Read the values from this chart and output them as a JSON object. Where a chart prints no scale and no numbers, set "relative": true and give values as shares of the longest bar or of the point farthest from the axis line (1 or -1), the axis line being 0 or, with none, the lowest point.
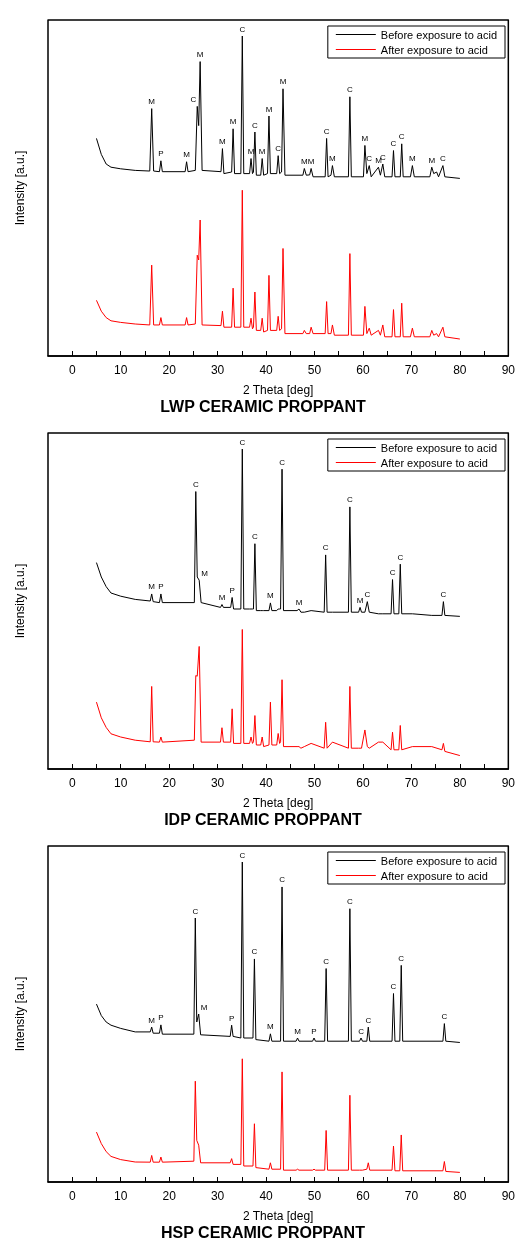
{
  "chart_data": [
    {
      "type": "line",
      "title": "LWP CERAMIC PROPPANT",
      "xlabel": "2 Theta [deg]",
      "ylabel": "Intensity [a.u.]",
      "relative": true,
      "legend": "top right",
      "marker": "none",
      "tick_labels": "x",
      "xlim": [
        -5,
        90
      ],
      "xticks": [
        0,
        {
          "value": 5,
          "label": null
        },
        10,
        {
          "value": 15,
          "label": null
        },
        20,
        {
          "value": 25,
          "label": null
        },
        30,
        {
          "value": 35,
          "label": null
        },
        40,
        {
          "value": 45,
          "label": null
        },
        50,
        {
          "value": 55,
          "label": null
        },
        60,
        {
          "value": 65,
          "label": null
        },
        70,
        {
          "value": 75,
          "label": null
        },
        80,
        {
          "value": 85,
          "label": null
        },
        90
      ],
      "x": [
        5,
        6,
        7,
        8,
        10,
        13,
        16,
        16.4,
        16.8,
        18,
        18.3,
        18.6,
        23.3,
        23.6,
        23.9,
        25.4,
        25.8,
        26.1,
        26.4,
        26.8,
        30.7,
        31,
        31.3,
        32.9,
        33.2,
        33.5,
        34.8,
        35.1,
        35.4,
        36.6,
        36.9,
        37.2,
        37.4,
        37.7,
        38,
        38.9,
        39.2,
        39.5,
        40.3,
        40.6,
        40.9,
        42.2,
        42.5,
        42.8,
        43.2,
        43.5,
        43.9,
        47.6,
        47.9,
        48.3,
        49,
        49.3,
        49.7,
        52.2,
        52.5,
        52.8,
        53.4,
        53.7,
        54.1,
        57,
        57.3,
        57.6,
        60.1,
        60.4,
        60.8,
        61.3,
        61.7,
        63.2,
        63.6,
        64.1,
        64.5,
        66,
        66.3,
        66.6,
        67.7,
        68,
        68.3,
        69.8,
        70.2,
        70.6,
        73.8,
        74.2,
        74.6,
        75.2,
        75.6,
        76.5,
        76.9,
        80
      ],
      "series": [
        {
          "name": "Before exposure to acid",
          "color": "#000000",
          "values": [
            0.68,
            0.63,
            0.6,
            0.59,
            0.585,
            0.58,
            0.578,
            0.773,
            0.578,
            0.576,
            0.61,
            0.576,
            0.576,
            0.607,
            0.576,
            0.58,
            0.78,
            0.72,
            0.92,
            0.58,
            0.576,
            0.648,
            0.57,
            0.575,
            0.71,
            0.57,
            0.57,
            1.0,
            0.57,
            0.57,
            0.617,
            0.57,
            0.575,
            0.7,
            0.565,
            0.565,
            0.617,
            0.565,
            0.57,
            0.75,
            0.57,
            0.57,
            0.626,
            0.57,
            0.575,
            0.835,
            0.565,
            0.565,
            0.586,
            0.565,
            0.566,
            0.586,
            0.56,
            0.56,
            0.68,
            0.56,
            0.565,
            0.595,
            0.56,
            0.56,
            0.81,
            0.56,
            0.56,
            0.658,
            0.57,
            0.595,
            0.56,
            0.59,
            0.565,
            0.6,
            0.56,
            0.56,
            0.642,
            0.56,
            0.56,
            0.663,
            0.56,
            0.56,
            0.595,
            0.56,
            0.56,
            0.59,
            0.57,
            0.575,
            0.56,
            0.595,
            0.56,
            0.555
          ]
        },
        {
          "name": "After exposure to acid",
          "color": "#ff0000",
          "values": [
            0.174,
            0.14,
            0.12,
            0.11,
            0.105,
            0.1,
            0.097,
            0.284,
            0.097,
            0.097,
            0.12,
            0.097,
            0.097,
            0.12,
            0.097,
            0.1,
            0.315,
            0.3,
            0.425,
            0.097,
            0.095,
            0.14,
            0.09,
            0.09,
            0.212,
            0.09,
            0.09,
            0.518,
            0.09,
            0.09,
            0.118,
            0.085,
            0.09,
            0.2,
            0.08,
            0.08,
            0.118,
            0.075,
            0.08,
            0.252,
            0.08,
            0.08,
            0.124,
            0.08,
            0.085,
            0.336,
            0.07,
            0.07,
            0.08,
            0.07,
            0.07,
            0.09,
            0.07,
            0.07,
            0.17,
            0.07,
            0.07,
            0.097,
            0.065,
            0.065,
            0.32,
            0.065,
            0.065,
            0.155,
            0.07,
            0.087,
            0.065,
            0.08,
            0.065,
            0.097,
            0.06,
            0.06,
            0.145,
            0.06,
            0.06,
            0.165,
            0.06,
            0.06,
            0.087,
            0.06,
            0.06,
            0.08,
            0.065,
            0.07,
            0.06,
            0.09,
            0.06,
            0.053
          ]
        }
      ],
      "annotations": [
        {
          "text": "M",
          "x": 16.4,
          "y": 0.773
        },
        {
          "text": "P",
          "x": 18.3,
          "y": 0.61
        },
        {
          "text": "M",
          "x": 23.6,
          "y": 0.607
        },
        {
          "text": "C",
          "x": 25.8,
          "y": 0.78
        },
        {
          "text": "M",
          "x": 26.4,
          "y": 0.92
        },
        {
          "text": "M",
          "x": 31,
          "y": 0.648
        },
        {
          "text": "M",
          "x": 33.2,
          "y": 0.71
        },
        {
          "text": "C",
          "x": 35.1,
          "y": 1.0
        },
        {
          "text": "M",
          "x": 36.9,
          "y": 0.617
        },
        {
          "text": "C",
          "x": 37.7,
          "y": 0.7
        },
        {
          "text": "M",
          "x": 39.2,
          "y": 0.617
        },
        {
          "text": "M",
          "x": 40.6,
          "y": 0.75
        },
        {
          "text": "C",
          "x": 42.5,
          "y": 0.626
        },
        {
          "text": "M",
          "x": 43.5,
          "y": 0.835
        },
        {
          "text": "M",
          "x": 47.9,
          "y": 0.586
        },
        {
          "text": "M",
          "x": 49.3,
          "y": 0.586
        },
        {
          "text": "C",
          "x": 52.5,
          "y": 0.68
        },
        {
          "text": "M",
          "x": 53.7,
          "y": 0.595
        },
        {
          "text": "C",
          "x": 57.3,
          "y": 0.81
        },
        {
          "text": "M",
          "x": 60.4,
          "y": 0.658
        },
        {
          "text": "C",
          "x": 61.3,
          "y": 0.595
        },
        {
          "text": "M",
          "x": 63.2,
          "y": 0.59
        },
        {
          "text": "C",
          "x": 64.1,
          "y": 0.6
        },
        {
          "text": "C",
          "x": 66.3,
          "y": 0.642
        },
        {
          "text": "C",
          "x": 68,
          "y": 0.663
        },
        {
          "text": "M",
          "x": 70.2,
          "y": 0.595
        },
        {
          "text": "M",
          "x": 74.2,
          "y": 0.59
        },
        {
          "text": "C",
          "x": 76.5,
          "y": 0.595
        }
      ]
    },
    {
      "type": "line",
      "title": "IDP CERAMIC PROPPANT",
      "xlabel": "2 Theta [deg]",
      "ylabel": "Intensity [a.u.]",
      "relative": true,
      "legend": "top right",
      "marker": "none",
      "tick_labels": "x",
      "xlim": [
        -5,
        90
      ],
      "xticks": [
        0,
        {
          "value": 5,
          "label": null
        },
        10,
        {
          "value": 15,
          "label": null
        },
        20,
        {
          "value": 25,
          "label": null
        },
        30,
        {
          "value": 35,
          "label": null
        },
        40,
        {
          "value": 45,
          "label": null
        },
        50,
        {
          "value": 55,
          "label": null
        },
        60,
        {
          "value": 65,
          "label": null
        },
        70,
        {
          "value": 75,
          "label": null
        },
        80,
        {
          "value": 85,
          "label": null
        },
        90
      ],
      "x": [
        5,
        6,
        7,
        8,
        10,
        13,
        16.1,
        16.4,
        16.7,
        18,
        18.3,
        18.6,
        25.2,
        25.5,
        25.8,
        26.2,
        26.6,
        30.6,
        30.9,
        31.2,
        32.7,
        33,
        33.3,
        34.8,
        35.1,
        35.4,
        36.6,
        36.9,
        37.2,
        37.4,
        37.7,
        38,
        38.9,
        39.2,
        39.5,
        40.6,
        40.9,
        41.2,
        42.2,
        42.5,
        42.8,
        43,
        43.3,
        43.6,
        46.4,
        46.8,
        47.2,
        47.9,
        49.3,
        52,
        52.3,
        52.6,
        53.7,
        57,
        57.3,
        57.6,
        59.1,
        59.4,
        59.7,
        60.4,
        60.9,
        61.3,
        63.2,
        64.1,
        65.8,
        66.1,
        66.4,
        67.4,
        67.7,
        68,
        70.2,
        74.2,
        76.3,
        76.6,
        76.9,
        80
      ],
      "series": [
        {
          "name": "Before exposure to acid",
          "color": "#000000",
          "values": [
            0.645,
            0.6,
            0.57,
            0.55,
            0.54,
            0.53,
            0.525,
            0.547,
            0.523,
            0.52,
            0.547,
            0.52,
            0.52,
            0.867,
            0.6,
            0.59,
            0.52,
            0.505,
            0.514,
            0.505,
            0.505,
            0.536,
            0.5,
            0.5,
            1.0,
            0.5,
            0.5,
            0.5,
            0.5,
            0.5,
            0.704,
            0.495,
            0.495,
            0.495,
            0.495,
            0.495,
            0.519,
            0.495,
            0.495,
            0.5,
            0.5,
            0.5,
            0.937,
            0.495,
            0.495,
            0.5,
            0.49,
            0.49,
            0.495,
            0.49,
            0.669,
            0.49,
            0.49,
            0.49,
            0.819,
            0.49,
            0.49,
            0.505,
            0.49,
            0.49,
            0.523,
            0.49,
            0.485,
            0.485,
            0.485,
            0.592,
            0.485,
            0.485,
            0.64,
            0.485,
            0.485,
            0.48,
            0.48,
            0.523,
            0.48,
            0.477
          ]
        },
        {
          "name": "After exposure to acid",
          "color": "#ff0000",
          "values": [
            0.209,
            0.16,
            0.13,
            0.11,
            0.1,
            0.09,
            0.085,
            0.258,
            0.085,
            0.084,
            0.1,
            0.084,
            0.09,
            0.292,
            0.29,
            0.383,
            0.084,
            0.084,
            0.129,
            0.084,
            0.084,
            0.188,
            0.08,
            0.08,
            0.436,
            0.08,
            0.08,
            0.1,
            0.08,
            0.085,
            0.167,
            0.075,
            0.075,
            0.1,
            0.07,
            0.075,
            0.209,
            0.075,
            0.075,
            0.111,
            0.08,
            0.085,
            0.279,
            0.07,
            0.07,
            0.07,
            0.065,
            0.07,
            0.08,
            0.065,
            0.146,
            0.065,
            0.084,
            0.065,
            0.258,
            0.065,
            0.065,
            0.065,
            0.065,
            0.122,
            0.07,
            0.065,
            0.084,
            0.084,
            0.06,
            0.115,
            0.06,
            0.06,
            0.136,
            0.06,
            0.07,
            0.07,
            0.06,
            0.08,
            0.055,
            0.042
          ]
        }
      ],
      "annotations": [
        {
          "text": "M",
          "x": 16.4,
          "y": 0.547
        },
        {
          "text": "P",
          "x": 18.3,
          "y": 0.547
        },
        {
          "text": "C",
          "x": 25.5,
          "y": 0.867
        },
        {
          "text": "M",
          "x": 26.2,
          "y": 0.59
        },
        {
          "text": "M",
          "x": 30.9,
          "y": 0.514
        },
        {
          "text": "P",
          "x": 33,
          "y": 0.536
        },
        {
          "text": "C",
          "x": 35.1,
          "y": 1.0
        },
        {
          "text": "C",
          "x": 37.7,
          "y": 0.704
        },
        {
          "text": "M",
          "x": 40.9,
          "y": 0.519
        },
        {
          "text": "C",
          "x": 43.3,
          "y": 0.937
        },
        {
          "text": "M",
          "x": 46.8,
          "y": 0.5
        },
        {
          "text": "C",
          "x": 52.3,
          "y": 0.669
        },
        {
          "text": "C",
          "x": 57.3,
          "y": 0.819
        },
        {
          "text": "M",
          "x": 59.4,
          "y": 0.505
        },
        {
          "text": "C",
          "x": 60.9,
          "y": 0.523
        },
        {
          "text": "C",
          "x": 66.1,
          "y": 0.592
        },
        {
          "text": "C",
          "x": 67.7,
          "y": 0.64
        },
        {
          "text": "C",
          "x": 76.6,
          "y": 0.523
        }
      ]
    },
    {
      "type": "line",
      "title": "HSP CERAMIC PROPPANT",
      "xlabel": "2 Theta [deg]",
      "ylabel": "Intensity [a.u.]",
      "relative": true,
      "legend": "top right",
      "marker": "none",
      "tick_labels": "x",
      "xlim": [
        -5,
        90
      ],
      "xticks": [
        0,
        {
          "value": 5,
          "label": null
        },
        10,
        {
          "value": 15,
          "label": null
        },
        20,
        {
          "value": 25,
          "label": null
        },
        30,
        {
          "value": 35,
          "label": null
        },
        40,
        {
          "value": 45,
          "label": null
        },
        50,
        {
          "value": 55,
          "label": null
        },
        60,
        {
          "value": 65,
          "label": null
        },
        70,
        {
          "value": 75,
          "label": null
        },
        80,
        {
          "value": 85,
          "label": null
        },
        90
      ],
      "x": [
        5,
        6,
        7,
        8,
        10,
        13,
        16.1,
        16.4,
        16.7,
        18,
        18.3,
        18.6,
        25.1,
        25.4,
        25.7,
        26.1,
        26.5,
        32.6,
        32.9,
        33.2,
        34.8,
        35.1,
        35.4,
        37.3,
        37.6,
        37.9,
        40.6,
        40.9,
        41.2,
        43,
        43.3,
        43.6,
        46.2,
        46.5,
        46.8,
        49.6,
        49.9,
        50.2,
        52.1,
        52.4,
        52.7,
        57,
        57.3,
        57.6,
        59.3,
        59.6,
        59.9,
        60.8,
        61.1,
        61.4,
        66,
        66.3,
        66.6,
        67.6,
        67.9,
        68.2,
        76.5,
        76.8,
        77.1,
        80
      ],
      "series": [
        {
          "name": "Before exposure to acid",
          "color": "#000000",
          "values": [
            0.556,
            0.52,
            0.5,
            0.49,
            0.48,
            0.469,
            0.469,
            0.484,
            0.465,
            0.465,
            0.491,
            0.462,
            0.462,
            0.825,
            0.5,
            0.525,
            0.46,
            0.455,
            0.49,
            0.455,
            0.45,
            1.0,
            0.45,
            0.45,
            0.697,
            0.445,
            0.44,
            0.463,
            0.44,
            0.44,
            0.922,
            0.44,
            0.44,
            0.45,
            0.44,
            0.44,
            0.45,
            0.44,
            0.44,
            0.667,
            0.44,
            0.44,
            0.854,
            0.44,
            0.44,
            0.45,
            0.44,
            0.44,
            0.484,
            0.44,
            0.44,
            0.589,
            0.44,
            0.44,
            0.677,
            0.44,
            0.44,
            0.495,
            0.44,
            0.436
          ]
        },
        {
          "name": "After exposure to acid",
          "color": "#ff0000",
          "values": [
            0.156,
            0.12,
            0.095,
            0.08,
            0.07,
            0.0625,
            0.062,
            0.083,
            0.062,
            0.062,
            0.078,
            0.062,
            0.065,
            0.315,
            0.13,
            0.115,
            0.06,
            0.06,
            0.073,
            0.055,
            0.055,
            0.385,
            0.05,
            0.05,
            0.182,
            0.045,
            0.04,
            0.06,
            0.04,
            0.04,
            0.344,
            0.037,
            0.037,
            0.04,
            0.037,
            0.037,
            0.04,
            0.037,
            0.037,
            0.161,
            0.037,
            0.037,
            0.271,
            0.037,
            0.037,
            0.037,
            0.037,
            0.04,
            0.06,
            0.037,
            0.037,
            0.1125,
            0.035,
            0.035,
            0.147,
            0.035,
            0.035,
            0.064,
            0.033,
            0.03
          ]
        }
      ],
      "annotations": [
        {
          "text": "M",
          "x": 16.4,
          "y": 0.484
        },
        {
          "text": "P",
          "x": 18.3,
          "y": 0.491
        },
        {
          "text": "C",
          "x": 25.4,
          "y": 0.825
        },
        {
          "text": "M",
          "x": 26.1,
          "y": 0.525
        },
        {
          "text": "P",
          "x": 32.9,
          "y": 0.49
        },
        {
          "text": "C",
          "x": 35.1,
          "y": 1.0
        },
        {
          "text": "C",
          "x": 37.6,
          "y": 0.697
        },
        {
          "text": "M",
          "x": 40.9,
          "y": 0.463
        },
        {
          "text": "C",
          "x": 43.3,
          "y": 0.922
        },
        {
          "text": "M",
          "x": 46.5,
          "y": 0.45
        },
        {
          "text": "P",
          "x": 49.9,
          "y": 0.45
        },
        {
          "text": "C",
          "x": 52.4,
          "y": 0.667
        },
        {
          "text": "C",
          "x": 57.3,
          "y": 0.854
        },
        {
          "text": "C",
          "x": 59.6,
          "y": 0.45
        },
        {
          "text": "C",
          "x": 61.1,
          "y": 0.484
        },
        {
          "text": "C",
          "x": 66.3,
          "y": 0.589
        },
        {
          "text": "C",
          "x": 67.9,
          "y": 0.677
        },
        {
          "text": "C",
          "x": 76.8,
          "y": 0.495
        }
      ]
    }
  ]
}
